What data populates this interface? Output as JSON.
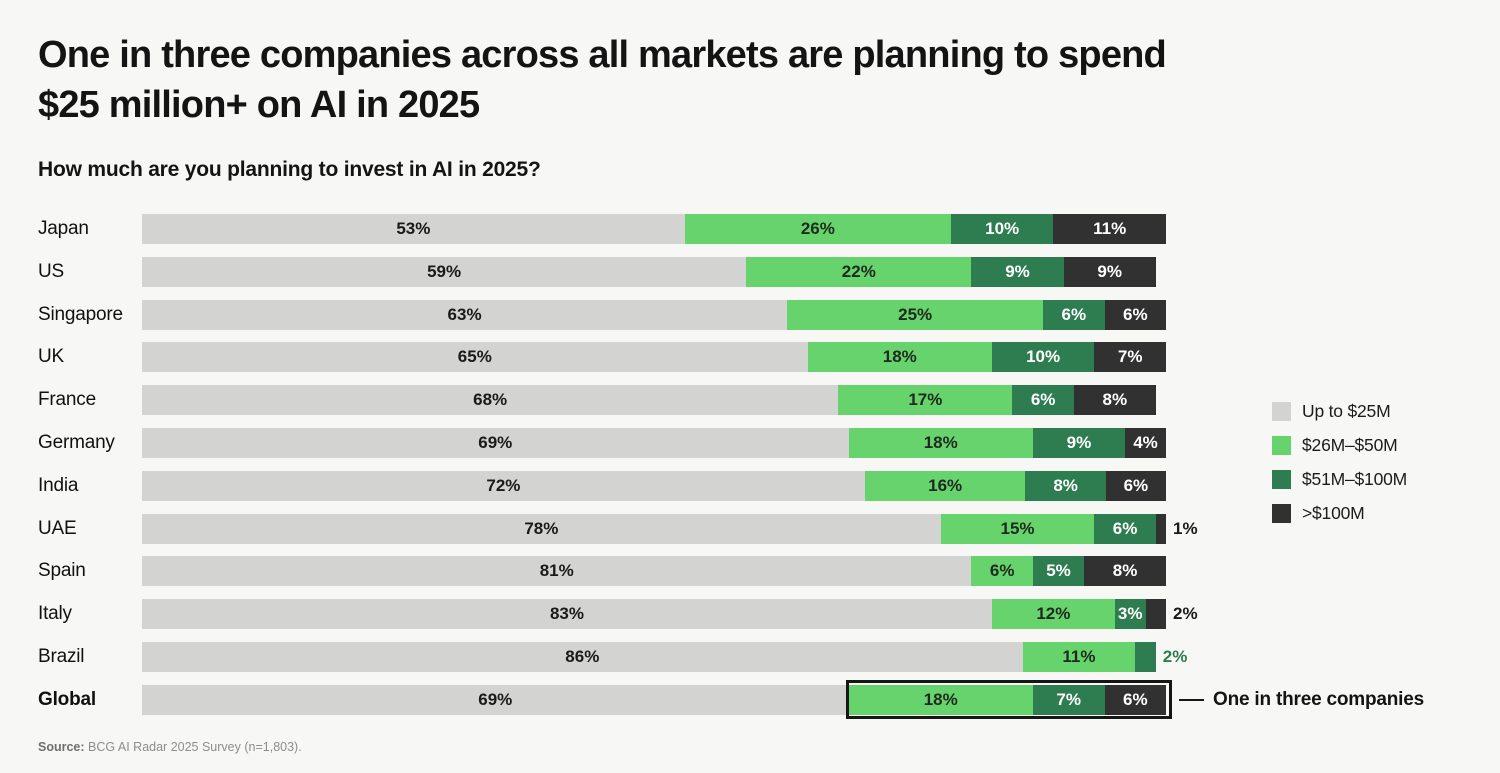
{
  "title_line1": "One in three companies across all markets are planning to spend",
  "title_line2": "$25 million+ on AI in 2025",
  "question": "How much are you planning to invest in AI in 2025?",
  "source": {
    "label": "Source:",
    "text": " BCG AI Radar 2025 Survey (n=1,803)."
  },
  "emphasis_category": "Global",
  "highlight": {
    "category": "Global",
    "label": "One in three companies"
  },
  "colors": {
    "background": "#f7f7f6",
    "up_to_25m": "#d3d3d2",
    "m26_50": "#67d36c",
    "m51_100": "#2e7d50",
    "over_100m": "#313131",
    "text_dark": "#1a1a1a",
    "text_light": "#ffffff",
    "highlight_border": "#161616"
  },
  "chart_data": {
    "type": "bar",
    "orientation": "horizontal",
    "stacked": true,
    "title": "How much are you planning to invest in AI in 2025?",
    "xlabel": "",
    "ylabel": "",
    "xlim": [
      0,
      100
    ],
    "unit": "%",
    "grid": false,
    "legend_position": "right",
    "categories": [
      "Japan",
      "US",
      "Singapore",
      "UK",
      "France",
      "Germany",
      "India",
      "UAE",
      "Spain",
      "Italy",
      "Brazil",
      "Global"
    ],
    "series": [
      {
        "name": "Up to $25M",
        "color": "#d3d3d2",
        "text_color": "#1a1a1a",
        "outside_label_color": "#1a1a1a",
        "values": [
          53,
          59,
          63,
          65,
          68,
          69,
          72,
          78,
          81,
          83,
          86,
          69
        ]
      },
      {
        "name": "$26M–$50M",
        "color": "#67d36c",
        "text_color": "#1f2a1f",
        "outside_label_color": "#1a1a1a",
        "values": [
          26,
          22,
          25,
          18,
          17,
          18,
          16,
          15,
          6,
          12,
          11,
          18
        ]
      },
      {
        "name": "$51M–$100M",
        "color": "#2e7d50",
        "text_color": "#ffffff",
        "outside_label_color": "#2e7d50",
        "values": [
          10,
          9,
          6,
          10,
          6,
          9,
          8,
          6,
          5,
          3,
          2,
          7
        ]
      },
      {
        "name": ">$100M",
        "color": "#313131",
        "text_color": "#ffffff",
        "outside_label_color": "#1a1a1a",
        "values": [
          11,
          9,
          6,
          7,
          8,
          4,
          6,
          1,
          8,
          2,
          0,
          6
        ]
      }
    ]
  }
}
